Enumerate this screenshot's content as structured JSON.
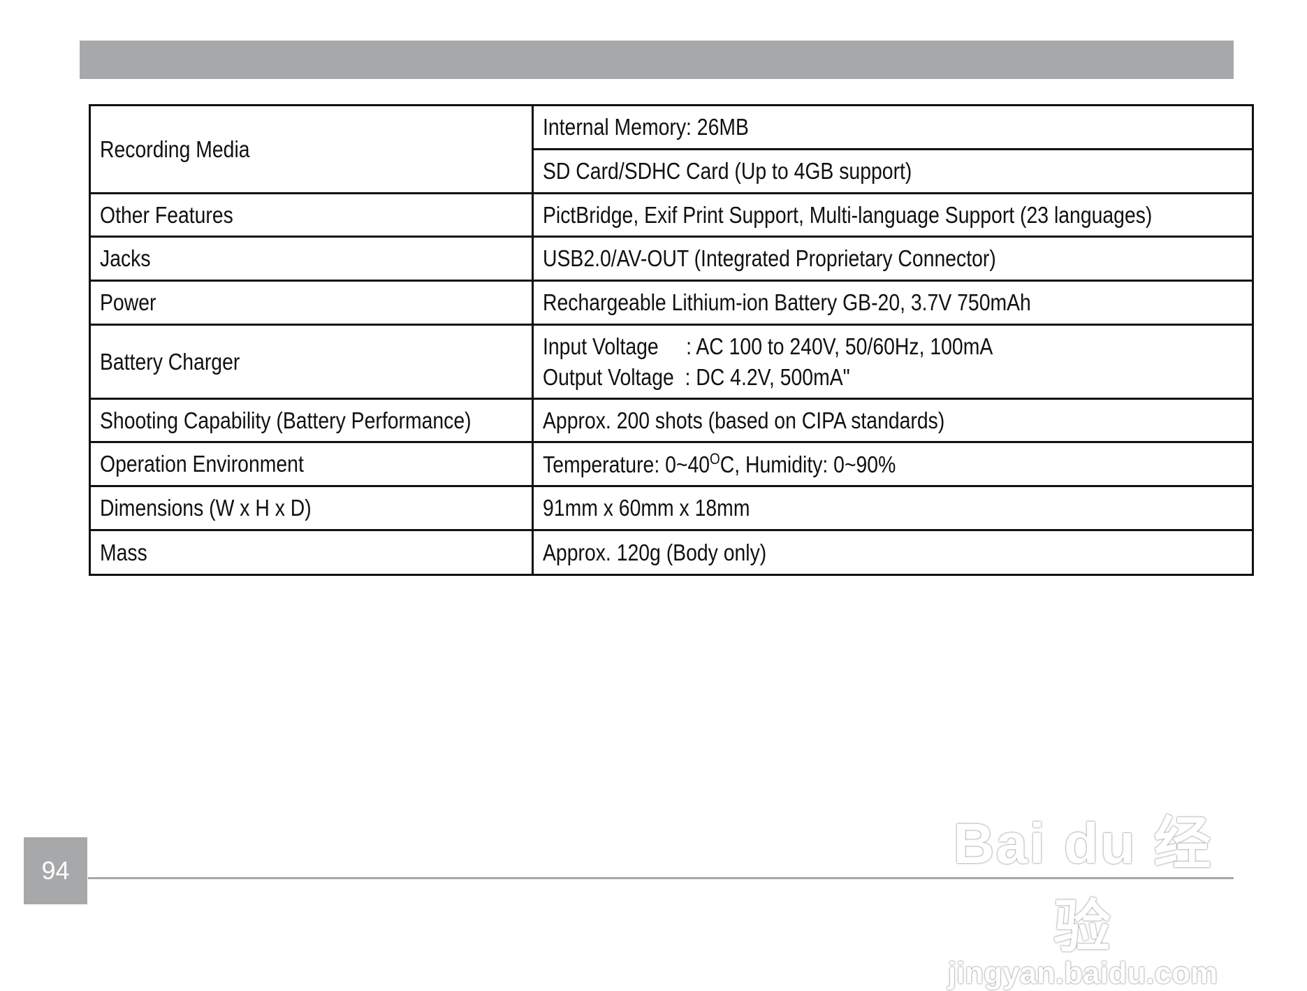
{
  "rows": [
    {
      "label": "Recording Media",
      "values": [
        "Internal Memory: 26MB",
        "SD Card/SDHC Card (Up to 4GB support)"
      ]
    },
    {
      "label": "Other Features",
      "value": "PictBridge, Exif Print Support, Multi-language Support (23 languages)"
    },
    {
      "label": "Jacks",
      "value": "USB2.0/AV-OUT (Integrated Proprietary Connector)"
    },
    {
      "label": "Power",
      "value": "Rechargeable Lithium-ion Battery GB-20, 3.7V 750mAh"
    },
    {
      "label": "Battery Charger",
      "values": [
        "Input Voltage     : AC 100 to 240V, 50/60Hz, 100mA",
        "Output Voltage  : DC 4.2V, 500mA\""
      ]
    },
    {
      "label": "Shooting Capability (Battery Performance)",
      "value": "Approx. 200 shots (based on CIPA standards)"
    },
    {
      "label": "Operation Environment",
      "value_pre": "Temperature: 0~40",
      "value_sup": "O",
      "value_post": "C, Humidity: 0~90%"
    },
    {
      "label": "Dimensions (W x H x D)",
      "value": "91mm x 60mm x 18mm"
    },
    {
      "label": "Mass",
      "value": "Approx. 120g (Body only)"
    }
  ],
  "page_number": "94",
  "watermark": {
    "logo": "Bai du 经验",
    "url": "jingyan.baidu.com"
  }
}
